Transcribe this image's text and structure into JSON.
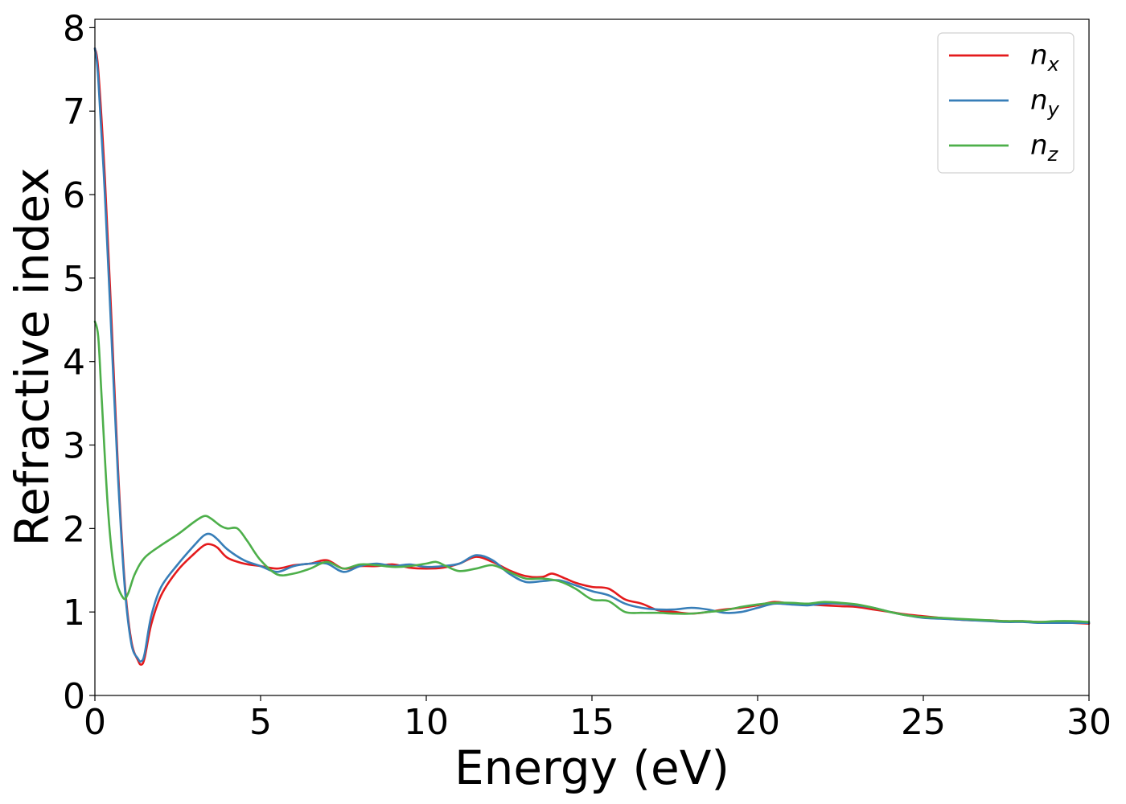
{
  "chart_data": {
    "type": "line",
    "xlabel": "Energy (eV)",
    "ylabel": "Refractive index",
    "xlim": [
      0,
      30
    ],
    "ylim": [
      0,
      8.1
    ],
    "xticks": [
      "0",
      "5",
      "10",
      "15",
      "20",
      "25",
      "30"
    ],
    "yticks": [
      "0",
      "1",
      "2",
      "3",
      "4",
      "5",
      "6",
      "7",
      "8"
    ],
    "grid": false,
    "legend_position": "top-right",
    "series": [
      {
        "name": "n",
        "subscript": "x",
        "color": "#e41a1c",
        "x": [
          0,
          0.1,
          0.3,
          0.5,
          0.7,
          0.9,
          1.1,
          1.3,
          1.4,
          1.5,
          1.7,
          2.0,
          2.5,
          3.0,
          3.3,
          3.5,
          3.7,
          4.0,
          4.5,
          5.0,
          5.5,
          6.0,
          6.5,
          7.0,
          7.5,
          8.0,
          8.5,
          9.0,
          9.5,
          10.0,
          10.5,
          11.0,
          11.5,
          12.0,
          12.5,
          13.0,
          13.5,
          13.8,
          14.2,
          14.5,
          15.0,
          15.5,
          16.0,
          16.5,
          17.0,
          17.5,
          18.0,
          18.5,
          19.0,
          19.5,
          20.0,
          20.5,
          21.0,
          21.5,
          22.0,
          22.5,
          23.0,
          23.5,
          24.0,
          24.5,
          25.0,
          25.5,
          26.0,
          26.5,
          27.0,
          27.5,
          28.0,
          28.5,
          29.0,
          29.5,
          30.0
        ],
        "y": [
          7.75,
          7.5,
          6.2,
          4.5,
          2.7,
          1.35,
          0.65,
          0.42,
          0.37,
          0.45,
          0.85,
          1.2,
          1.5,
          1.7,
          1.8,
          1.81,
          1.77,
          1.65,
          1.58,
          1.55,
          1.52,
          1.56,
          1.58,
          1.62,
          1.52,
          1.55,
          1.55,
          1.57,
          1.53,
          1.52,
          1.53,
          1.58,
          1.66,
          1.6,
          1.5,
          1.43,
          1.42,
          1.46,
          1.4,
          1.35,
          1.3,
          1.28,
          1.15,
          1.1,
          1.02,
          1.0,
          0.98,
          1.0,
          1.03,
          1.05,
          1.08,
          1.12,
          1.1,
          1.09,
          1.08,
          1.07,
          1.06,
          1.03,
          1.0,
          0.97,
          0.95,
          0.93,
          0.91,
          0.9,
          0.9,
          0.89,
          0.89,
          0.88,
          0.88,
          0.87,
          0.86
        ]
      },
      {
        "name": "n",
        "subscript": "y",
        "color": "#377eb8",
        "x": [
          0,
          0.1,
          0.3,
          0.5,
          0.7,
          0.9,
          1.1,
          1.3,
          1.4,
          1.5,
          1.7,
          2.0,
          2.5,
          3.0,
          3.3,
          3.5,
          3.7,
          4.0,
          4.5,
          5.0,
          5.5,
          6.0,
          6.5,
          7.0,
          7.5,
          8.0,
          8.5,
          9.0,
          9.5,
          10.0,
          10.5,
          11.0,
          11.5,
          12.0,
          12.5,
          13.0,
          13.5,
          14.0,
          14.5,
          15.0,
          15.5,
          16.0,
          16.5,
          17.0,
          17.5,
          18.0,
          18.5,
          19.0,
          19.5,
          20.0,
          20.5,
          21.0,
          21.5,
          22.0,
          22.5,
          23.0,
          23.5,
          24.0,
          24.5,
          25.0,
          25.5,
          26.0,
          26.5,
          27.0,
          27.5,
          28.0,
          28.5,
          29.0,
          29.5,
          30.0
        ],
        "y": [
          7.75,
          7.4,
          6.0,
          4.3,
          2.6,
          1.3,
          0.62,
          0.44,
          0.41,
          0.5,
          0.95,
          1.3,
          1.57,
          1.8,
          1.92,
          1.93,
          1.87,
          1.75,
          1.62,
          1.55,
          1.48,
          1.55,
          1.58,
          1.58,
          1.48,
          1.55,
          1.58,
          1.55,
          1.57,
          1.54,
          1.55,
          1.58,
          1.68,
          1.62,
          1.46,
          1.36,
          1.37,
          1.38,
          1.32,
          1.25,
          1.2,
          1.1,
          1.05,
          1.03,
          1.03,
          1.05,
          1.03,
          0.99,
          1.0,
          1.05,
          1.1,
          1.09,
          1.08,
          1.1,
          1.1,
          1.08,
          1.05,
          1.0,
          0.96,
          0.93,
          0.92,
          0.91,
          0.9,
          0.89,
          0.88,
          0.88,
          0.87,
          0.87,
          0.87,
          0.87
        ]
      },
      {
        "name": "n",
        "subscript": "z",
        "color": "#4daf4a",
        "x": [
          0,
          0.1,
          0.2,
          0.4,
          0.6,
          0.85,
          1.0,
          1.2,
          1.5,
          2.0,
          2.5,
          3.0,
          3.3,
          3.5,
          3.8,
          4.0,
          4.3,
          4.6,
          5.0,
          5.5,
          6.0,
          6.5,
          7.0,
          7.5,
          8.0,
          8.5,
          9.0,
          9.5,
          10.0,
          10.3,
          10.6,
          11.0,
          11.5,
          12.0,
          12.5,
          13.0,
          13.5,
          14.0,
          14.5,
          15.0,
          15.5,
          16.0,
          16.5,
          17.0,
          17.5,
          18.0,
          18.5,
          19.0,
          19.5,
          20.0,
          20.5,
          21.0,
          21.5,
          22.0,
          22.5,
          23.0,
          23.5,
          24.0,
          24.5,
          25.0,
          25.5,
          26.0,
          26.5,
          27.0,
          27.5,
          28.0,
          28.5,
          29.0,
          29.5,
          30.0
        ],
        "y": [
          4.48,
          4.3,
          3.6,
          2.2,
          1.45,
          1.17,
          1.22,
          1.45,
          1.65,
          1.8,
          1.93,
          2.08,
          2.15,
          2.12,
          2.03,
          2.0,
          2.0,
          1.85,
          1.62,
          1.45,
          1.46,
          1.52,
          1.6,
          1.52,
          1.57,
          1.56,
          1.54,
          1.55,
          1.58,
          1.6,
          1.55,
          1.49,
          1.52,
          1.56,
          1.48,
          1.4,
          1.4,
          1.37,
          1.28,
          1.15,
          1.13,
          1.0,
          0.99,
          0.99,
          0.98,
          0.98,
          1.0,
          1.02,
          1.06,
          1.09,
          1.11,
          1.11,
          1.1,
          1.12,
          1.11,
          1.09,
          1.05,
          1.0,
          0.96,
          0.94,
          0.93,
          0.92,
          0.91,
          0.9,
          0.89,
          0.89,
          0.88,
          0.89,
          0.89,
          0.88
        ]
      }
    ]
  }
}
